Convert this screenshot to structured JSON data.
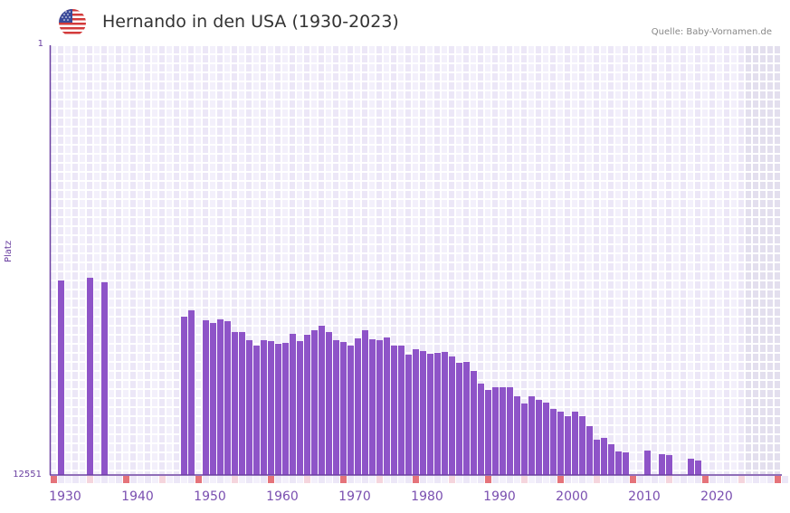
{
  "header": {
    "title": "Hernando in den USA (1930-2023)",
    "source": "Quelle: Baby-Vornamen.de",
    "flag_icon": "us-flag-icon"
  },
  "colors": {
    "bar": "#8e54c8",
    "axis": "#6a3fa0",
    "grid_light": "#f3f0fb",
    "grid_dark": "#ece7f7",
    "future_shade": "#e3dfee",
    "decade_marker": "#e5737a",
    "half_decade_marker": "#f5d5dd"
  },
  "chart_data": {
    "type": "bar",
    "title": "Hernando in den USA (1930-2023)",
    "xlabel": "",
    "ylabel": "Platz",
    "y_axis_inverted": true,
    "ylim": [
      1,
      12551
    ],
    "xlim": [
      1928,
      2029
    ],
    "y_ticks": [
      "1",
      "12551"
    ],
    "x_ticks": [
      "1930",
      "1940",
      "1950",
      "1960",
      "1970",
      "1980",
      "1990",
      "2000",
      "2010",
      "2020"
    ],
    "grid": true,
    "legend": null,
    "shaded_future_from": 2024,
    "x": [
      1929,
      1933,
      1935,
      1946,
      1947,
      1949,
      1950,
      1951,
      1952,
      1953,
      1954,
      1955,
      1956,
      1957,
      1958,
      1959,
      1960,
      1961,
      1962,
      1963,
      1964,
      1965,
      1966,
      1967,
      1968,
      1969,
      1970,
      1971,
      1972,
      1973,
      1974,
      1975,
      1976,
      1977,
      1978,
      1979,
      1980,
      1981,
      1982,
      1983,
      1984,
      1985,
      1986,
      1987,
      1988,
      1989,
      1990,
      1991,
      1992,
      1993,
      1994,
      1995,
      1996,
      1997,
      1998,
      1999,
      2000,
      2001,
      2002,
      2003,
      2004,
      2005,
      2006,
      2007,
      2010,
      2012,
      2013,
      2016,
      2017
    ],
    "values": [
      6870,
      6791,
      6923,
      7927,
      7742,
      8033,
      8112,
      8006,
      8059,
      8376,
      8376,
      8614,
      8772,
      8614,
      8640,
      8720,
      8693,
      8429,
      8640,
      8455,
      8323,
      8191,
      8376,
      8614,
      8667,
      8772,
      8561,
      8323,
      8588,
      8614,
      8535,
      8772,
      8772,
      9037,
      8878,
      8931,
      9010,
      8984,
      8957,
      9089,
      9274,
      9248,
      9512,
      9882,
      10067,
      9988,
      9988,
      9988,
      10252,
      10463,
      10252,
      10358,
      10437,
      10622,
      10701,
      10833,
      10701,
      10833,
      11124,
      11520,
      11467,
      11652,
      11863,
      11890,
      11837,
      11943,
      11969,
      12075,
      12128
    ]
  }
}
